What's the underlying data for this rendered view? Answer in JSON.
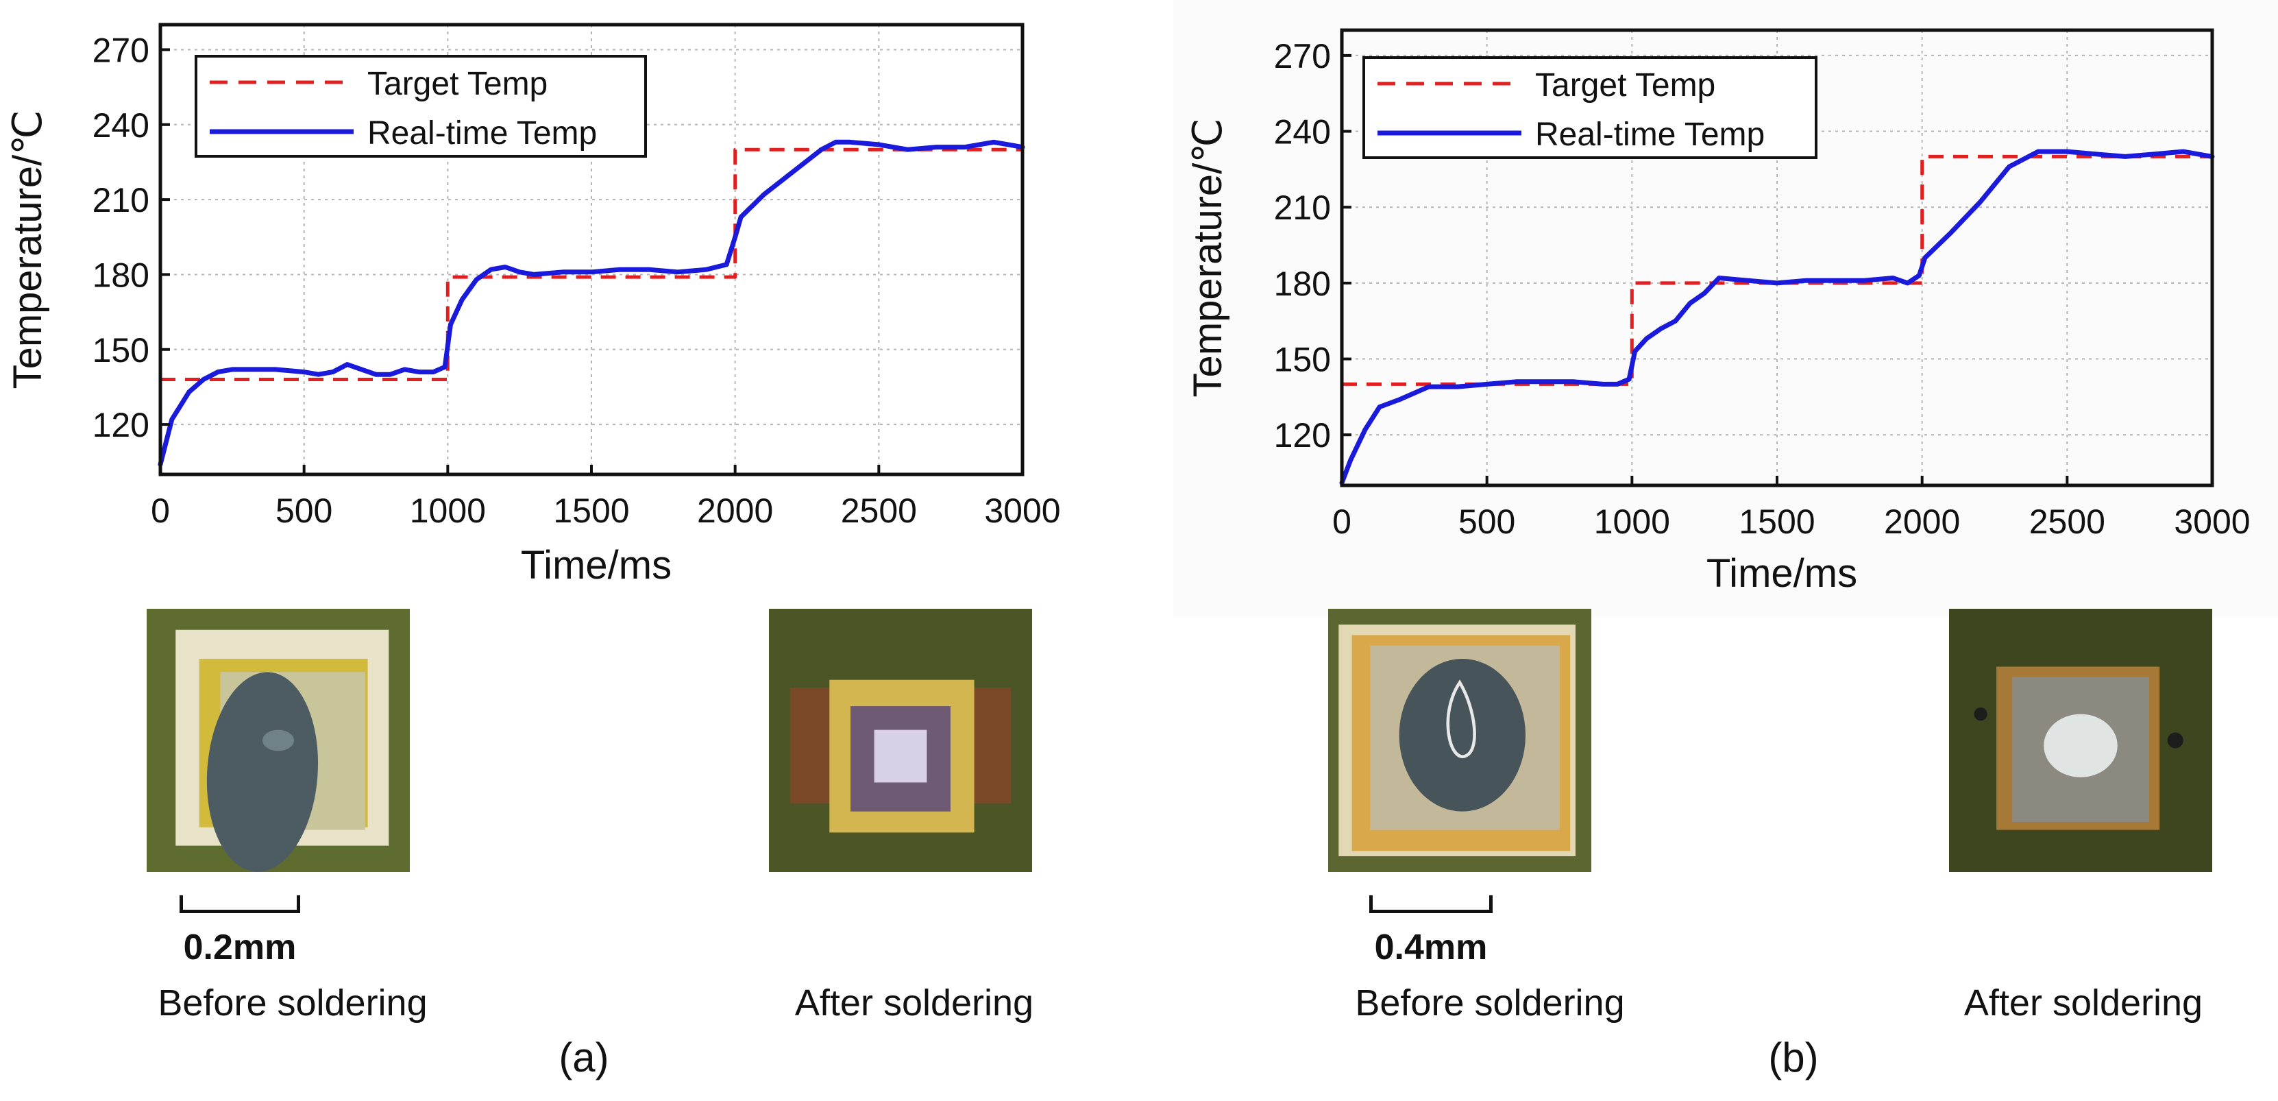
{
  "chart_data": [
    {
      "type": "line",
      "panel": "(a)",
      "xlabel": "Time/ms",
      "ylabel": "Temperature/℃",
      "xlim": [
        0,
        3000
      ],
      "ylim": [
        100,
        280
      ],
      "xticks": [
        0,
        500,
        1000,
        1500,
        2000,
        2500,
        3000
      ],
      "yticks": [
        120,
        150,
        180,
        210,
        240,
        270
      ],
      "grid": true,
      "legend_position": "top-left",
      "series": [
        {
          "name": "Target Temp",
          "style": "dashed",
          "color": "#e02020",
          "x": [
            0,
            1000,
            1000,
            2000,
            2000,
            3000
          ],
          "y": [
            138,
            138,
            179,
            179,
            230,
            230
          ]
        },
        {
          "name": "Real-time Temp",
          "style": "solid",
          "color": "#1a1adc",
          "x": [
            0,
            40,
            100,
            150,
            200,
            250,
            300,
            400,
            500,
            550,
            600,
            650,
            700,
            750,
            800,
            850,
            900,
            950,
            990,
            1010,
            1050,
            1100,
            1150,
            1200,
            1250,
            1300,
            1400,
            1500,
            1600,
            1700,
            1800,
            1900,
            1970,
            2000,
            2020,
            2100,
            2200,
            2300,
            2350,
            2400,
            2500,
            2600,
            2700,
            2800,
            2900,
            3000
          ],
          "y": [
            104,
            122,
            133,
            138,
            141,
            142,
            142,
            142,
            141,
            140,
            141,
            144,
            142,
            140,
            140,
            142,
            141,
            141,
            143,
            160,
            170,
            178,
            182,
            183,
            181,
            180,
            181,
            181,
            182,
            182,
            181,
            182,
            184,
            195,
            203,
            212,
            221,
            230,
            233,
            233,
            232,
            230,
            231,
            231,
            233,
            231
          ]
        }
      ]
    },
    {
      "type": "line",
      "panel": "(b)",
      "xlabel": "Time/ms",
      "ylabel": "Temperature/℃",
      "xlim": [
        0,
        3000
      ],
      "ylim": [
        100,
        280
      ],
      "xticks": [
        0,
        500,
        1000,
        1500,
        2000,
        2500,
        3000
      ],
      "yticks": [
        120,
        150,
        180,
        210,
        240,
        270
      ],
      "grid": true,
      "legend_position": "top-left",
      "series": [
        {
          "name": "Target Temp",
          "style": "dashed",
          "color": "#e02020",
          "x": [
            0,
            1000,
            1000,
            2000,
            2000,
            3000
          ],
          "y": [
            140,
            140,
            180,
            180,
            230,
            230
          ]
        },
        {
          "name": "Real-time Temp",
          "style": "solid",
          "color": "#1a1adc",
          "x": [
            0,
            30,
            80,
            130,
            200,
            300,
            400,
            500,
            600,
            700,
            800,
            900,
            950,
            990,
            1010,
            1050,
            1100,
            1150,
            1200,
            1250,
            1300,
            1400,
            1500,
            1600,
            1700,
            1800,
            1900,
            1950,
            1990,
            2010,
            2100,
            2200,
            2300,
            2400,
            2500,
            2600,
            2700,
            2800,
            2900,
            3000
          ],
          "y": [
            101,
            110,
            122,
            131,
            134,
            139,
            139,
            140,
            141,
            141,
            141,
            140,
            140,
            142,
            153,
            158,
            162,
            165,
            172,
            176,
            182,
            181,
            180,
            181,
            181,
            181,
            182,
            180,
            183,
            190,
            200,
            212,
            226,
            232,
            232,
            231,
            230,
            231,
            232,
            230
          ]
        }
      ]
    }
  ],
  "panels": [
    {
      "label": "(a)",
      "before_caption": "Before soldering",
      "after_caption": "After soldering",
      "scale_label": "0.2mm"
    },
    {
      "label": "(b)",
      "before_caption": "Before soldering",
      "after_caption": "After soldering",
      "scale_label": "0.4mm"
    }
  ]
}
